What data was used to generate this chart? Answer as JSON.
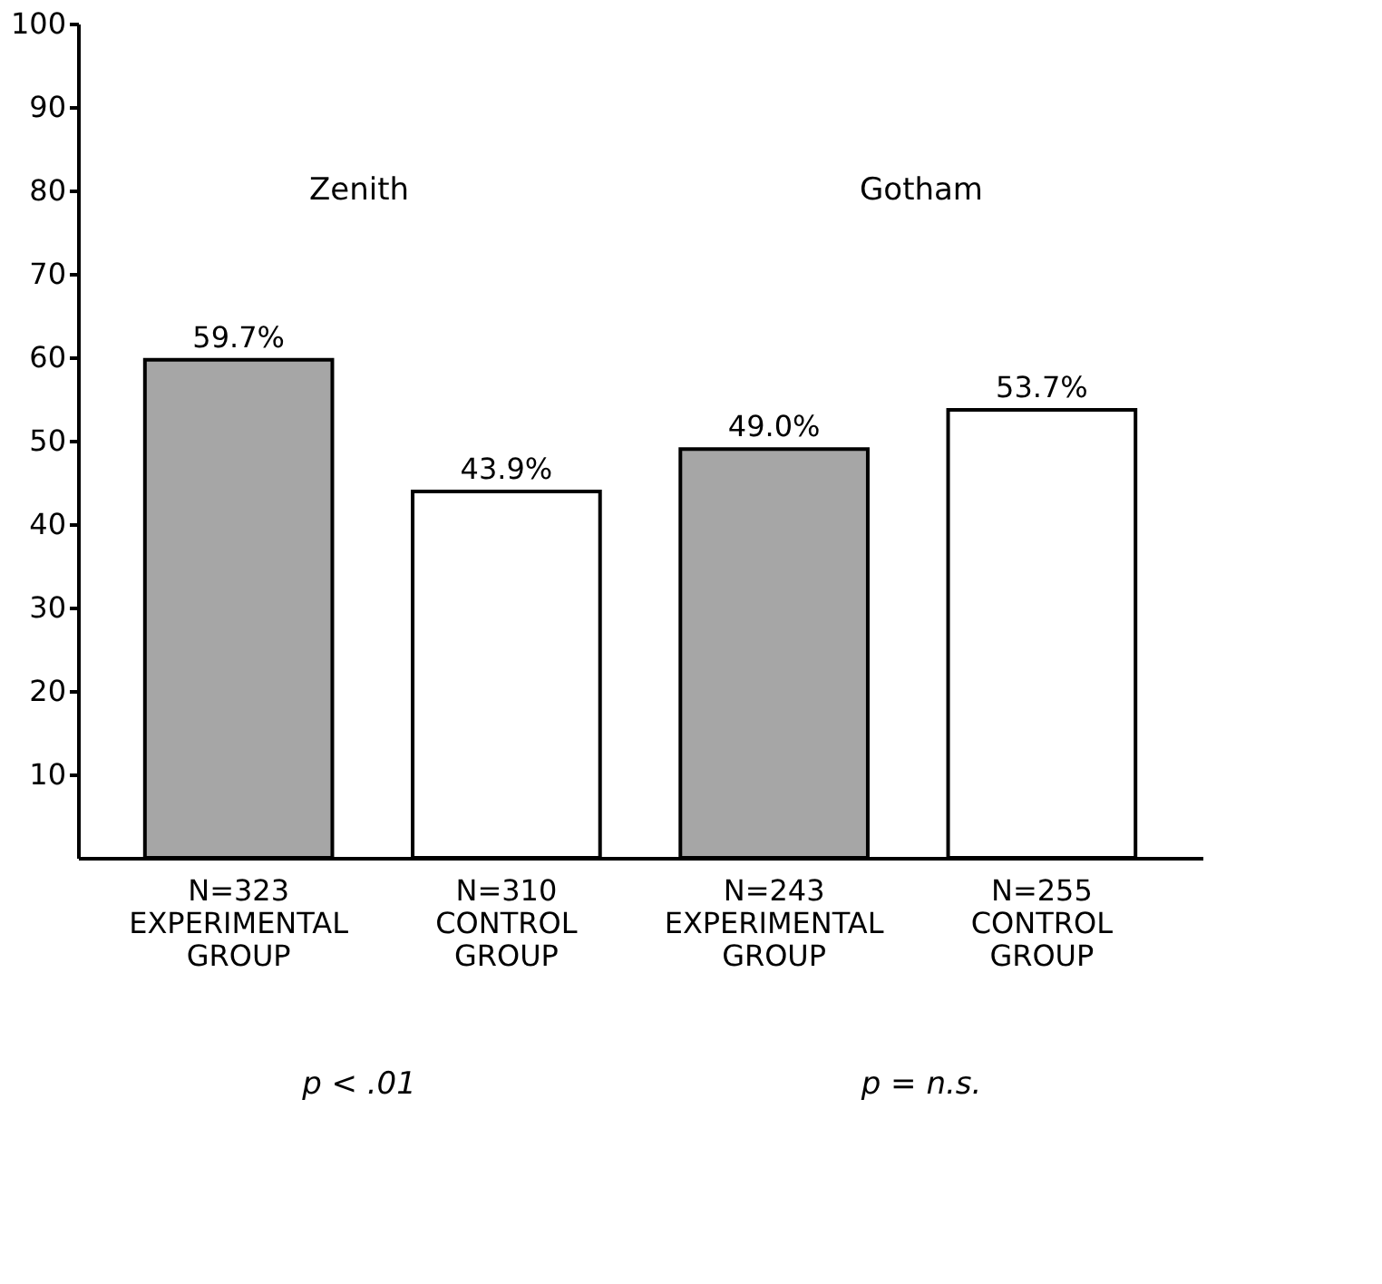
{
  "chart_data": {
    "type": "bar",
    "categories": [
      "N=323\nEXPERIMENTAL\nGROUP",
      "N=310\nCONTROL\nGROUP",
      "N=243\nEXPERIMENTAL\nGROUP",
      "N=255\nCONTROL\nGROUP"
    ],
    "values": [
      59.7,
      43.9,
      49.0,
      53.7
    ],
    "colors": [
      "#a6a6a6",
      "#ffffff",
      "#a6a6a6",
      "#ffffff"
    ],
    "value_labels": [
      "59.7%",
      "43.9%",
      "49.0%",
      "53.7%"
    ],
    "ylim": [
      0,
      100
    ],
    "yticks": [
      10,
      20,
      30,
      40,
      50,
      60,
      70,
      80,
      90,
      100
    ],
    "grid": false,
    "annotations": [
      "Zenith",
      "Gotham",
      "p < .01",
      "p = n.s."
    ]
  }
}
